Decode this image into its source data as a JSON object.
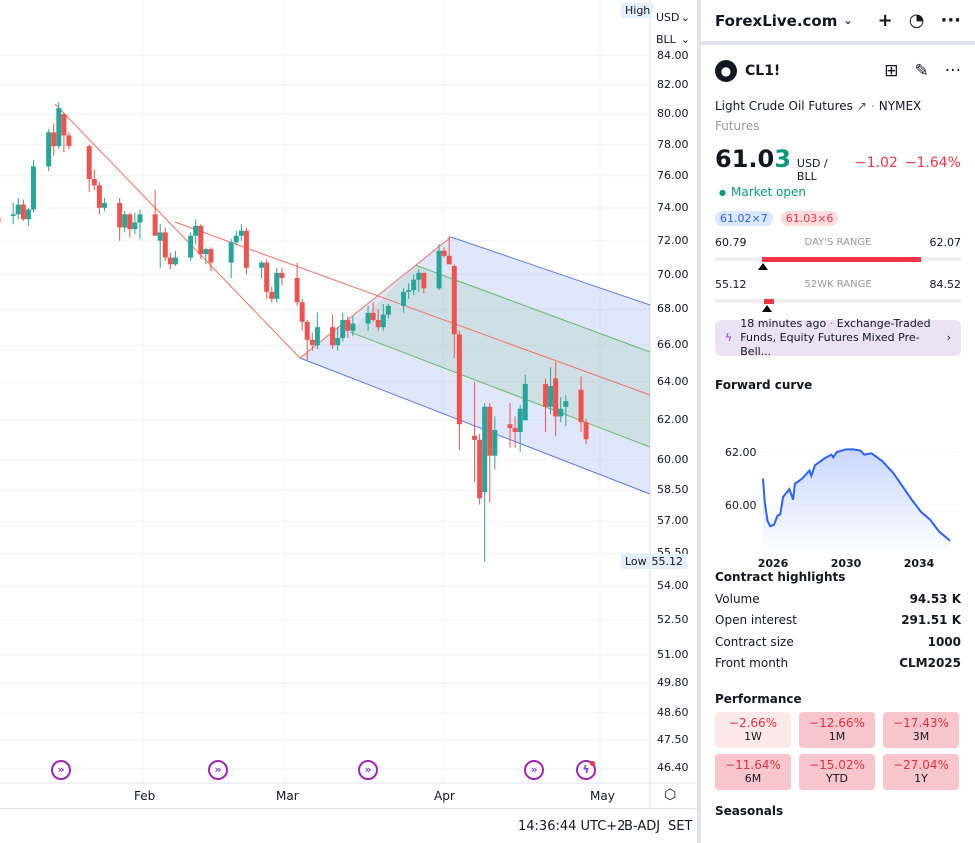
{
  "chart": {
    "high_label": "High",
    "low_label": "Low",
    "low_value": "55.12",
    "currency": "USD",
    "unit": "BLL",
    "price_ticks": [
      "84.00",
      "82.00",
      "80.00",
      "78.00",
      "76.00",
      "74.00",
      "72.00",
      "70.00",
      "68.00",
      "66.00",
      "64.00",
      "62.00",
      "60.00",
      "58.50",
      "57.00",
      "55.50",
      "54.00",
      "52.50",
      "51.00",
      "49.80",
      "48.60",
      "47.50",
      "46.40"
    ],
    "months": [
      "Feb",
      "Mar",
      "Apr",
      "May"
    ],
    "colors": {
      "up": "#26a69a",
      "down": "#ef5350",
      "pitchfork": "#f2705f",
      "channel": "#5b7be8",
      "inner": "#66bb6a"
    },
    "scale": "log"
  },
  "chart_data": {
    "type": "candlestick",
    "ohlc": [
      [
        "2025-01-03",
        73.4,
        74.0,
        72.9,
        73.1
      ],
      [
        "2025-01-06",
        73.5,
        74.3,
        73.0,
        73.6
      ],
      [
        "2025-01-07",
        73.6,
        74.6,
        73.3,
        74.2
      ],
      [
        "2025-01-08",
        74.2,
        74.5,
        73.2,
        73.3
      ],
      [
        "2025-01-09",
        73.3,
        74.0,
        72.9,
        73.9
      ],
      [
        "2025-01-10",
        73.9,
        77.0,
        73.7,
        76.6
      ],
      [
        "2025-01-13",
        76.6,
        79.0,
        76.3,
        78.8
      ],
      [
        "2025-01-14",
        78.8,
        79.4,
        77.3,
        77.9
      ],
      [
        "2025-01-15",
        77.9,
        80.8,
        77.7,
        80.4
      ],
      [
        "2025-01-16",
        80.0,
        80.1,
        77.5,
        78.6
      ],
      [
        "2025-01-17",
        78.6,
        78.8,
        77.7,
        77.9
      ],
      [
        "2025-01-21",
        77.9,
        78.0,
        75.0,
        75.8
      ],
      [
        "2025-01-22",
        75.8,
        76.4,
        75.1,
        75.4
      ],
      [
        "2025-01-23",
        75.4,
        75.6,
        73.6,
        74.0
      ],
      [
        "2025-01-24",
        74.0,
        74.6,
        73.8,
        74.3
      ],
      [
        "2025-01-27",
        74.3,
        74.6,
        72.0,
        72.8
      ],
      [
        "2025-01-28",
        72.8,
        73.8,
        72.5,
        73.6
      ],
      [
        "2025-01-29",
        73.6,
        73.7,
        72.2,
        72.7
      ],
      [
        "2025-01-30",
        72.7,
        73.7,
        72.4,
        73.1
      ],
      [
        "2025-01-31",
        73.1,
        73.9,
        72.1,
        73.6
      ],
      [
        "2025-02-03",
        73.6,
        75.1,
        72.4,
        72.3
      ],
      [
        "2025-02-04",
        72.0,
        73.0,
        70.4,
        72.5
      ],
      [
        "2025-02-05",
        72.5,
        72.8,
        70.8,
        71.0
      ],
      [
        "2025-02-06",
        71.0,
        71.3,
        70.3,
        70.6
      ],
      [
        "2025-02-07",
        70.6,
        71.4,
        70.5,
        71.0
      ],
      [
        "2025-02-10",
        71.0,
        72.5,
        70.8,
        72.3
      ],
      [
        "2025-02-11",
        72.3,
        73.3,
        71.8,
        72.9
      ],
      [
        "2025-02-12",
        72.9,
        73.0,
        70.9,
        71.2
      ],
      [
        "2025-02-13",
        71.2,
        71.6,
        70.6,
        71.5
      ],
      [
        "2025-02-14",
        71.5,
        71.6,
        70.2,
        70.7
      ],
      [
        "2025-02-18",
        70.7,
        72.1,
        69.8,
        71.9
      ],
      [
        "2025-02-19",
        71.9,
        72.6,
        71.7,
        72.3
      ],
      [
        "2025-02-20",
        72.3,
        73.0,
        72.0,
        72.6
      ],
      [
        "2025-02-21",
        72.6,
        72.8,
        70.0,
        70.4
      ],
      [
        "2025-02-24",
        70.4,
        70.8,
        69.8,
        70.7
      ],
      [
        "2025-02-25",
        70.7,
        70.9,
        68.6,
        69.0
      ],
      [
        "2025-02-26",
        69.0,
        69.3,
        68.4,
        68.6
      ],
      [
        "2025-02-27",
        68.6,
        70.4,
        68.4,
        70.1
      ],
      [
        "2025-02-28",
        70.1,
        70.4,
        69.4,
        69.8
      ],
      [
        "2025-03-03",
        69.8,
        70.7,
        68.2,
        68.4
      ],
      [
        "2025-03-04",
        68.4,
        68.6,
        66.8,
        67.3
      ],
      [
        "2025-03-05",
        67.3,
        67.4,
        65.2,
        66.3
      ],
      [
        "2025-03-06",
        66.3,
        66.7,
        65.7,
        66.0
      ],
      [
        "2025-03-07",
        66.0,
        67.8,
        65.8,
        67.0
      ],
      [
        "2025-03-10",
        67.0,
        67.7,
        65.8,
        66.0
      ],
      [
        "2025-03-11",
        66.0,
        67.0,
        65.7,
        66.4
      ],
      [
        "2025-03-12",
        66.4,
        67.8,
        66.2,
        67.4
      ],
      [
        "2025-03-13",
        67.4,
        67.6,
        66.4,
        66.8
      ],
      [
        "2025-03-14",
        66.8,
        67.6,
        66.5,
        67.2
      ],
      [
        "2025-03-17",
        67.2,
        68.2,
        66.8,
        67.8
      ],
      [
        "2025-03-18",
        67.8,
        68.4,
        67.3,
        67.4
      ],
      [
        "2025-03-19",
        67.4,
        68.0,
        66.8,
        67.0
      ],
      [
        "2025-03-20",
        67.0,
        68.3,
        66.8,
        67.7
      ],
      [
        "2025-03-21",
        67.7,
        68.3,
        67.5,
        68.2
      ],
      [
        "2025-03-24",
        68.2,
        69.2,
        67.8,
        69.0
      ],
      [
        "2025-03-25",
        69.0,
        69.5,
        68.6,
        69.1
      ],
      [
        "2025-03-26",
        69.1,
        70.0,
        68.8,
        69.7
      ],
      [
        "2025-03-27",
        69.7,
        70.3,
        69.0,
        70.1
      ],
      [
        "2025-03-28",
        70.1,
        70.1,
        68.9,
        69.2
      ],
      [
        "2025-03-31",
        69.2,
        71.8,
        69.1,
        71.4
      ],
      [
        "2025-04-01",
        71.4,
        71.6,
        71.0,
        71.1
      ],
      [
        "2025-04-02",
        71.1,
        72.3,
        70.6,
        70.6
      ],
      [
        "2025-04-03",
        70.5,
        70.6,
        65.3,
        66.6
      ],
      [
        "2025-04-04",
        66.6,
        66.8,
        60.5,
        61.8
      ],
      [
        "2025-04-07",
        61.2,
        64.0,
        58.9,
        61.0
      ],
      [
        "2025-04-08",
        61.0,
        61.3,
        57.8,
        58.1
      ],
      [
        "2025-04-09",
        58.4,
        62.9,
        55.12,
        62.7
      ],
      [
        "2025-04-10",
        62.7,
        62.9,
        57.9,
        60.2
      ],
      [
        "2025-04-11",
        60.2,
        62.2,
        59.5,
        61.5
      ],
      [
        "2025-04-14",
        61.8,
        62.9,
        60.6,
        61.6
      ],
      [
        "2025-04-15",
        61.6,
        62.2,
        60.6,
        61.4
      ],
      [
        "2025-04-16",
        61.4,
        62.8,
        60.4,
        62.6
      ],
      [
        "2025-04-17",
        62.0,
        64.4,
        62.0,
        63.9
      ],
      [
        "2025-04-21",
        63.9,
        64.2,
        61.4,
        62.7
      ],
      [
        "2025-04-22",
        62.7,
        64.8,
        62.3,
        63.8
      ],
      [
        "2025-04-23",
        64.2,
        65.1,
        61.2,
        62.2
      ],
      [
        "2025-04-24",
        62.2,
        63.2,
        61.9,
        62.6
      ],
      [
        "2025-04-25",
        62.7,
        63.3,
        61.7,
        63.0
      ],
      [
        "2025-04-28",
        63.6,
        64.3,
        61.4,
        61.9
      ],
      [
        "2025-04-29",
        61.9,
        62.07,
        60.79,
        61.03
      ]
    ],
    "ylim": [
      46.0,
      85.0
    ],
    "xlim": [
      "2025-01-02",
      "2025-05-09"
    ]
  },
  "bottombar": {
    "time": "14:36:44 UTC+2",
    "adj": "B-ADJ",
    "session": "SET"
  },
  "panel": {
    "watchlist": "ForexLive.com",
    "symbol": "CL1!",
    "name": "Light Crude Oil Futures",
    "exchange": "NYMEX",
    "type": "Futures",
    "price_main": "61.0",
    "price_last": "3",
    "currency_unit": "USD / BLL",
    "change": "−1.02",
    "change_pct": "−1.64%",
    "market_status": "Market open",
    "bid": "61.02×7",
    "ask": "61.03×6",
    "days_range": {
      "label": "DAY'S RANGE",
      "low": "60.79",
      "high": "62.07"
    },
    "wk52_range": {
      "label": "52WK RANGE",
      "low": "55.12",
      "high": "84.52"
    },
    "news": {
      "time": "18 minutes ago",
      "sep": "·",
      "headline": "Exchange-Traded Funds, Equity Futures Mixed Pre-Bell..."
    },
    "forward_curve": {
      "title": "Forward curve",
      "y_ticks": [
        "62.00",
        "60.00"
      ],
      "x_ticks": [
        "2026",
        "2030",
        "2034"
      ],
      "points": [
        [
          2025.45,
          61.0
        ],
        [
          2025.55,
          60.1
        ],
        [
          2025.7,
          59.4
        ],
        [
          2025.85,
          59.2
        ],
        [
          2026.05,
          59.25
        ],
        [
          2026.25,
          59.6
        ],
        [
          2026.4,
          59.65
        ],
        [
          2026.55,
          60.3
        ],
        [
          2026.9,
          60.6
        ],
        [
          2027.1,
          60.2
        ],
        [
          2027.2,
          60.8
        ],
        [
          2027.6,
          61.0
        ],
        [
          2028.0,
          61.3
        ],
        [
          2028.1,
          61.1
        ],
        [
          2028.3,
          61.5
        ],
        [
          2028.8,
          61.75
        ],
        [
          2029.2,
          61.9
        ],
        [
          2029.3,
          61.8
        ],
        [
          2029.5,
          62.0
        ],
        [
          2030.0,
          62.1
        ],
        [
          2030.4,
          62.1
        ],
        [
          2030.8,
          62.05
        ],
        [
          2031.0,
          61.9
        ],
        [
          2031.4,
          61.95
        ],
        [
          2032.0,
          61.65
        ],
        [
          2032.6,
          61.2
        ],
        [
          2033.1,
          60.7
        ],
        [
          2033.6,
          60.2
        ],
        [
          2034.1,
          59.75
        ],
        [
          2034.6,
          59.45
        ],
        [
          2035.1,
          59.0
        ],
        [
          2035.7,
          58.65
        ]
      ]
    },
    "contract_highlights": {
      "title": "Contract highlights",
      "rows": [
        {
          "k": "Volume",
          "v": "94.53 K"
        },
        {
          "k": "Open interest",
          "v": "291.51 K"
        },
        {
          "k": "Contract size",
          "v": "1000"
        },
        {
          "k": "Front month",
          "v": "CLM2025"
        }
      ]
    },
    "performance": {
      "title": "Performance",
      "items": [
        {
          "v": "−2.66%",
          "p": "1W"
        },
        {
          "v": "−12.66%",
          "p": "1M"
        },
        {
          "v": "−17.43%",
          "p": "3M"
        },
        {
          "v": "−11.64%",
          "p": "6M"
        },
        {
          "v": "−15.02%",
          "p": "YTD"
        },
        {
          "v": "−27.04%",
          "p": "1Y"
        }
      ]
    },
    "seasonals": "Seasonals"
  }
}
